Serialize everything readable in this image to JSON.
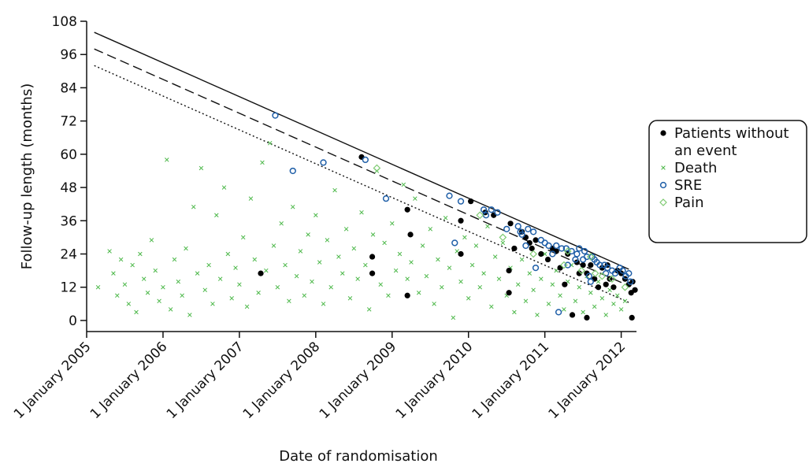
{
  "chart_data": {
    "type": "scatter",
    "xlabel": "Date of randomisation",
    "ylabel": "Follow-up length (months)",
    "xlim": [
      2005.0,
      2012.2
    ],
    "ylim": [
      -4,
      108
    ],
    "x_ticks": [
      {
        "value": 2005,
        "label": "1 January 2005"
      },
      {
        "value": 2006,
        "label": "1 January 2006"
      },
      {
        "value": 2007,
        "label": "1 January 2007"
      },
      {
        "value": 2008,
        "label": "1 January 2008"
      },
      {
        "value": 2009,
        "label": "1 January 2009"
      },
      {
        "value": 2010,
        "label": "1 January 2010"
      },
      {
        "value": 2011,
        "label": "1 January 2011"
      },
      {
        "value": 2012,
        "label": "1 January 2012"
      }
    ],
    "y_ticks": [
      0,
      12,
      24,
      36,
      48,
      60,
      72,
      84,
      96,
      108
    ],
    "legend": {
      "placement": "right",
      "entries": [
        {
          "label_lines": [
            "Patients without",
            "an event"
          ],
          "marker": "filled-circle",
          "color": "#000000"
        },
        {
          "label_lines": [
            "Death"
          ],
          "marker": "x",
          "color": "#4db84a"
        },
        {
          "label_lines": [
            "SRE"
          ],
          "marker": "open-circle",
          "color": "#1f5fa8"
        },
        {
          "label_lines": [
            "Pain"
          ],
          "marker": "open-diamond",
          "color": "#7ecb72"
        }
      ]
    },
    "reference_lines": [
      {
        "style": "solid",
        "x": [
          2005.1,
          2012.1
        ],
        "y": [
          104,
          18.5
        ]
      },
      {
        "style": "dashed",
        "x": [
          2005.1,
          2012.1
        ],
        "y": [
          98,
          12.5
        ]
      },
      {
        "style": "dotted",
        "x": [
          2005.1,
          2012.1
        ],
        "y": [
          92,
          6.5
        ]
      }
    ],
    "series": [
      {
        "name": "Patients without an event",
        "marker": "filled-circle",
        "color": "#000000",
        "points": [
          [
            2007.28,
            17
          ],
          [
            2008.6,
            59
          ],
          [
            2008.74,
            23
          ],
          [
            2008.74,
            17
          ],
          [
            2009.2,
            40
          ],
          [
            2009.24,
            31
          ],
          [
            2009.2,
            9
          ],
          [
            2009.9,
            24
          ],
          [
            2009.9,
            36
          ],
          [
            2010.03,
            43
          ],
          [
            2010.22,
            39
          ],
          [
            2010.33,
            38
          ],
          [
            2010.53,
            18
          ],
          [
            2010.53,
            10
          ],
          [
            2010.6,
            26
          ],
          [
            2010.55,
            35
          ],
          [
            2010.7,
            32
          ],
          [
            2010.75,
            30
          ],
          [
            2010.8,
            28
          ],
          [
            2010.83,
            26
          ],
          [
            2010.88,
            29
          ],
          [
            2010.95,
            24
          ],
          [
            2011.04,
            22
          ],
          [
            2011.1,
            26
          ],
          [
            2011.15,
            25
          ],
          [
            2011.2,
            19
          ],
          [
            2011.26,
            13
          ],
          [
            2011.3,
            24
          ],
          [
            2011.36,
            2
          ],
          [
            2011.42,
            21
          ],
          [
            2011.5,
            20
          ],
          [
            2011.55,
            1
          ],
          [
            2011.55,
            17
          ],
          [
            2011.6,
            20
          ],
          [
            2011.65,
            15
          ],
          [
            2011.75,
            19
          ],
          [
            2011.8,
            13
          ],
          [
            2011.85,
            15
          ],
          [
            2011.9,
            12
          ],
          [
            2011.95,
            18
          ],
          [
            2012.0,
            17
          ],
          [
            2012.05,
            15
          ],
          [
            2012.1,
            13
          ],
          [
            2012.13,
            10
          ],
          [
            2012.15,
            14
          ],
          [
            2012.18,
            11
          ],
          [
            2012.14,
            1
          ],
          [
            2011.45,
            17
          ],
          [
            2011.7,
            12
          ],
          [
            2011.82,
            20
          ]
        ]
      },
      {
        "name": "Death",
        "marker": "x",
        "color": "#4db84a",
        "points": [
          [
            2005.15,
            12
          ],
          [
            2005.3,
            25
          ],
          [
            2005.35,
            17
          ],
          [
            2005.4,
            9
          ],
          [
            2005.45,
            22
          ],
          [
            2005.5,
            13
          ],
          [
            2005.55,
            6
          ],
          [
            2005.6,
            20
          ],
          [
            2005.65,
            3
          ],
          [
            2005.7,
            24
          ],
          [
            2005.75,
            15
          ],
          [
            2005.8,
            10
          ],
          [
            2005.85,
            29
          ],
          [
            2005.9,
            18
          ],
          [
            2005.95,
            7
          ],
          [
            2006.0,
            12
          ],
          [
            2006.05,
            58
          ],
          [
            2006.1,
            4
          ],
          [
            2006.15,
            22
          ],
          [
            2006.2,
            14
          ],
          [
            2006.25,
            9
          ],
          [
            2006.3,
            26
          ],
          [
            2006.35,
            2
          ],
          [
            2006.4,
            41
          ],
          [
            2006.45,
            17
          ],
          [
            2006.5,
            55
          ],
          [
            2006.55,
            11
          ],
          [
            2006.6,
            20
          ],
          [
            2006.65,
            6
          ],
          [
            2006.7,
            38
          ],
          [
            2006.75,
            15
          ],
          [
            2006.8,
            48
          ],
          [
            2006.85,
            24
          ],
          [
            2006.9,
            8
          ],
          [
            2006.95,
            19
          ],
          [
            2007.0,
            13
          ],
          [
            2007.05,
            30
          ],
          [
            2007.1,
            5
          ],
          [
            2007.15,
            44
          ],
          [
            2007.2,
            22
          ],
          [
            2007.25,
            10
          ],
          [
            2007.3,
            57
          ],
          [
            2007.35,
            18
          ],
          [
            2007.4,
            64
          ],
          [
            2007.45,
            27
          ],
          [
            2007.5,
            12
          ],
          [
            2007.55,
            35
          ],
          [
            2007.6,
            20
          ],
          [
            2007.65,
            7
          ],
          [
            2007.7,
            41
          ],
          [
            2007.75,
            16
          ],
          [
            2007.8,
            25
          ],
          [
            2007.85,
            9
          ],
          [
            2007.9,
            31
          ],
          [
            2007.95,
            14
          ],
          [
            2008.0,
            38
          ],
          [
            2008.05,
            21
          ],
          [
            2008.1,
            6
          ],
          [
            2008.15,
            29
          ],
          [
            2008.2,
            12
          ],
          [
            2008.25,
            47
          ],
          [
            2008.3,
            23
          ],
          [
            2008.35,
            17
          ],
          [
            2008.4,
            33
          ],
          [
            2008.45,
            8
          ],
          [
            2008.5,
            26
          ],
          [
            2008.55,
            15
          ],
          [
            2008.6,
            39
          ],
          [
            2008.65,
            20
          ],
          [
            2008.7,
            4
          ],
          [
            2008.75,
            31
          ],
          [
            2008.8,
            54
          ],
          [
            2008.85,
            13
          ],
          [
            2008.9,
            28
          ],
          [
            2008.95,
            9
          ],
          [
            2009.0,
            35
          ],
          [
            2009.05,
            18
          ],
          [
            2009.1,
            24
          ],
          [
            2009.15,
            49
          ],
          [
            2009.2,
            15
          ],
          [
            2009.25,
            21
          ],
          [
            2009.3,
            44
          ],
          [
            2009.35,
            10
          ],
          [
            2009.4,
            27
          ],
          [
            2009.45,
            16
          ],
          [
            2009.5,
            33
          ],
          [
            2009.55,
            6
          ],
          [
            2009.6,
            22
          ],
          [
            2009.65,
            12
          ],
          [
            2009.7,
            37
          ],
          [
            2009.75,
            19
          ],
          [
            2009.8,
            1
          ],
          [
            2009.85,
            25
          ],
          [
            2009.9,
            14
          ],
          [
            2009.95,
            30
          ],
          [
            2010.0,
            8
          ],
          [
            2010.05,
            20
          ],
          [
            2010.1,
            27
          ],
          [
            2010.15,
            12
          ],
          [
            2010.2,
            17
          ],
          [
            2010.25,
            34
          ],
          [
            2010.3,
            5
          ],
          [
            2010.35,
            23
          ],
          [
            2010.4,
            15
          ],
          [
            2010.45,
            28
          ],
          [
            2010.5,
            9
          ],
          [
            2010.55,
            19
          ],
          [
            2010.6,
            3
          ],
          [
            2010.65,
            13
          ],
          [
            2010.7,
            22
          ],
          [
            2010.75,
            7
          ],
          [
            2010.8,
            17
          ],
          [
            2010.85,
            11
          ],
          [
            2010.9,
            2
          ],
          [
            2010.95,
            15
          ],
          [
            2011.0,
            24
          ],
          [
            2011.05,
            6
          ],
          [
            2011.1,
            13
          ],
          [
            2011.15,
            18
          ],
          [
            2011.2,
            9
          ],
          [
            2011.25,
            4
          ],
          [
            2011.3,
            14
          ],
          [
            2011.35,
            20
          ],
          [
            2011.4,
            7
          ],
          [
            2011.45,
            12
          ],
          [
            2011.5,
            3
          ],
          [
            2011.55,
            16
          ],
          [
            2011.6,
            10
          ],
          [
            2011.65,
            5
          ],
          [
            2011.7,
            14
          ],
          [
            2011.75,
            8
          ],
          [
            2011.8,
            2
          ],
          [
            2011.85,
            11
          ],
          [
            2011.9,
            6
          ],
          [
            2011.95,
            9
          ],
          [
            2012.0,
            4
          ],
          [
            2012.05,
            7
          ]
        ]
      },
      {
        "name": "SRE",
        "marker": "open-circle",
        "color": "#1f5fa8",
        "points": [
          [
            2007.47,
            74
          ],
          [
            2007.7,
            54
          ],
          [
            2008.1,
            57
          ],
          [
            2008.65,
            58
          ],
          [
            2008.92,
            44
          ],
          [
            2009.75,
            45
          ],
          [
            2009.82,
            28
          ],
          [
            2009.9,
            43
          ],
          [
            2010.2,
            40
          ],
          [
            2010.23,
            38
          ],
          [
            2010.3,
            40
          ],
          [
            2010.38,
            39
          ],
          [
            2010.5,
            33
          ],
          [
            2010.65,
            34
          ],
          [
            2010.68,
            32
          ],
          [
            2010.7,
            31
          ],
          [
            2010.78,
            33
          ],
          [
            2010.85,
            32
          ],
          [
            2010.88,
            19
          ],
          [
            2010.95,
            29
          ],
          [
            2011.0,
            28
          ],
          [
            2011.05,
            27
          ],
          [
            2011.1,
            24
          ],
          [
            2011.15,
            27
          ],
          [
            2011.18,
            3
          ],
          [
            2011.22,
            26
          ],
          [
            2011.28,
            26
          ],
          [
            2011.35,
            25
          ],
          [
            2011.42,
            24
          ],
          [
            2011.45,
            26
          ],
          [
            2011.5,
            22
          ],
          [
            2011.52,
            25
          ],
          [
            2011.55,
            23
          ],
          [
            2011.6,
            14
          ],
          [
            2011.62,
            23
          ],
          [
            2011.68,
            21
          ],
          [
            2011.72,
            20
          ],
          [
            2011.78,
            20
          ],
          [
            2011.82,
            19
          ],
          [
            2011.88,
            18
          ],
          [
            2011.92,
            17
          ],
          [
            2011.98,
            19
          ],
          [
            2012.02,
            18
          ],
          [
            2012.06,
            16
          ],
          [
            2012.1,
            17
          ],
          [
            2012.12,
            14
          ],
          [
            2011.8,
            17
          ],
          [
            2011.65,
            22
          ],
          [
            2011.4,
            22
          ],
          [
            2011.3,
            20
          ],
          [
            2010.75,
            27
          ],
          [
            2011.58,
            16
          ]
        ]
      },
      {
        "name": "Pain",
        "marker": "open-diamond",
        "color": "#7ecb72",
        "points": [
          [
            2008.8,
            55
          ],
          [
            2010.15,
            38
          ],
          [
            2010.45,
            30
          ],
          [
            2010.85,
            24
          ],
          [
            2011.3,
            25
          ],
          [
            2011.48,
            18
          ],
          [
            2011.66,
            17
          ],
          [
            2011.88,
            15
          ],
          [
            2012.05,
            12
          ],
          [
            2011.25,
            20
          ],
          [
            2011.75,
            16
          ],
          [
            2011.6,
            23
          ]
        ]
      }
    ]
  }
}
